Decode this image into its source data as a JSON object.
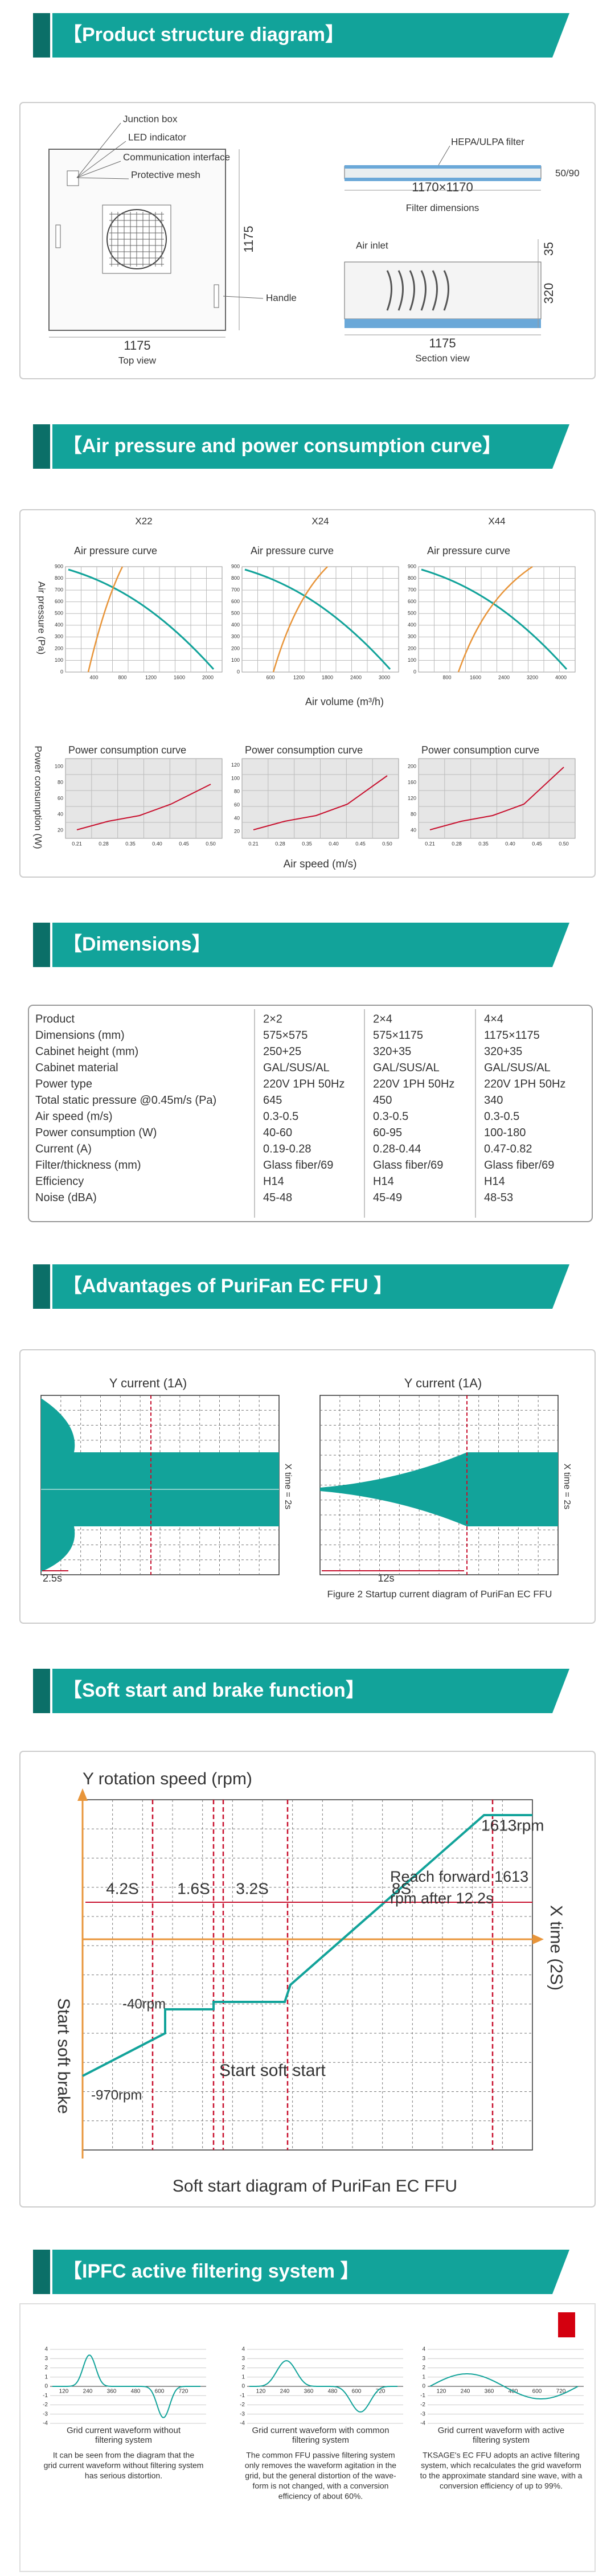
{
  "banners": [
    "【Product structure diagram】",
    "【Air pressure and power consumption curve】",
    "【Dimensions】",
    "【Advantages of PuriFan EC FFU 】",
    "【Soft start and brake function】",
    "【IPFC active filtering system 】"
  ],
  "structure": {
    "junction_box": "Junction box",
    "led_indicator": "LED indicator",
    "communication_interface": "Communication interface",
    "protective_mesh": "Protective mesh",
    "height_dim": "1175",
    "handle": "Handle",
    "width_dim": "1175",
    "top_view": "Top view",
    "filter": "HEPA/ULPA filter",
    "filter_thickness": "50/90",
    "filter_size": "1170×1170",
    "filter_dimensions": "Filter dimensions",
    "air_inlet": "Air inlet",
    "dim_35": "35",
    "dim_320": "320",
    "section_width": "1175",
    "section_view": "Section view"
  },
  "curves": {
    "models": [
      "X22",
      "X24",
      "X44"
    ],
    "pressure_title": "Air pressure curve",
    "pressure_ylabel": "Air pressure (Pa)",
    "pressure_xlabel": "Air volume (m³/h)",
    "power_title": "Power consumption curve",
    "power_ylabel": "Power consumption (W)",
    "power_xlabel": "Air speed (m/s)",
    "pressure_yticks": [
      0,
      100,
      200,
      300,
      400,
      500,
      600,
      700,
      800,
      900
    ],
    "pressure_xticks": [
      [
        400,
        800,
        1200,
        1600,
        2000
      ],
      [
        600,
        1200,
        1800,
        2400,
        3000
      ],
      [
        800,
        1600,
        2400,
        3200,
        4000
      ]
    ],
    "power_yticks": [
      [
        20,
        40,
        60,
        80,
        100
      ],
      [
        20,
        40,
        60,
        80,
        100,
        120
      ],
      [
        40,
        80,
        120,
        160,
        200
      ]
    ],
    "power_xticks": [
      "0.21",
      "0.28",
      "0.35",
      "0.40",
      "0.45",
      "0.50"
    ]
  },
  "table": {
    "rows": [
      [
        "Product",
        "2×2",
        "2×4",
        "4×4"
      ],
      [
        "Dimensions (mm)",
        "575×575",
        "575×1175",
        "1175×1175"
      ],
      [
        "Cabinet height (mm)",
        "250+25",
        "320+35",
        "320+35"
      ],
      [
        "Cabinet material",
        "GAL/SUS/AL",
        "GAL/SUS/AL",
        "GAL/SUS/AL"
      ],
      [
        "Power type",
        "220V 1PH 50Hz",
        "220V 1PH 50Hz",
        "220V 1PH 50Hz"
      ],
      [
        "Total static pressure @0.45m/s (Pa)",
        "645",
        "450",
        "340"
      ],
      [
        "Air speed (m/s)",
        "0.3-0.5",
        "0.3-0.5",
        "0.3-0.5"
      ],
      [
        "Power consumption (W)",
        "40-60",
        "60-95",
        "100-180"
      ],
      [
        "Current (A)",
        "0.19-0.28",
        "0.28-0.44",
        "0.47-0.82"
      ],
      [
        "Filter/thickness (mm)",
        "Glass fiber/69",
        "Glass fiber/69",
        "Glass fiber/69"
      ],
      [
        "Efficiency",
        "H14",
        "H14",
        "H14"
      ],
      [
        "Noise (dBA)",
        "45-48",
        "45-49",
        "48-53"
      ]
    ]
  },
  "advantages": {
    "y_label": "Y current (1A)",
    "x_label": "X time = 2s",
    "left_time": "2.5s",
    "right_time": "12s",
    "caption": "Figure 2 Startup current diagram of PuriFan EC FFU"
  },
  "soft_start": {
    "y_label": "Y rotation speed (rpm)",
    "peak": "1613rpm",
    "reach": [
      "Reach forward 1613",
      "rpm after 12.2s"
    ],
    "intervals": [
      "4.2S",
      "1.6S",
      "3.2S",
      "8S"
    ],
    "x_label": "X time (2S)",
    "brake": "Start soft brake",
    "low1": "-40rpm",
    "low2": "-970rpm",
    "start": "Start soft start",
    "caption": "Soft start diagram of PuriFan EC FFU"
  },
  "ipfc": {
    "yticks": [
      "4",
      "3",
      "2",
      "1",
      "0",
      "-1",
      "-2",
      "-3",
      "-4"
    ],
    "xticks": [
      "120",
      "240",
      "360",
      "480",
      "600",
      "720"
    ],
    "captions": [
      [
        "Grid current waveform without",
        "filtering system"
      ],
      [
        "Grid current waveform with common",
        "filtering system"
      ],
      [
        "Grid current waveform with active",
        "filtering system"
      ]
    ],
    "paragraphs": [
      [
        "It can be seen from the diagram that the",
        "grid current waveform without filtering system",
        "has serious distortion."
      ],
      [
        "The common FFU passive filtering system",
        "only removes the waveform agitation in the",
        "grid, but the general distortion of the wave-",
        "form is not changed, with a conversion",
        "efficiency of about 60%."
      ],
      [
        "TKSAGE's EC FFU adopts an active filtering",
        "system, which recalculates the grid waveform",
        "to the approximate standard sine wave, with a",
        "conversion efficiency of up to 99%."
      ]
    ]
  }
}
